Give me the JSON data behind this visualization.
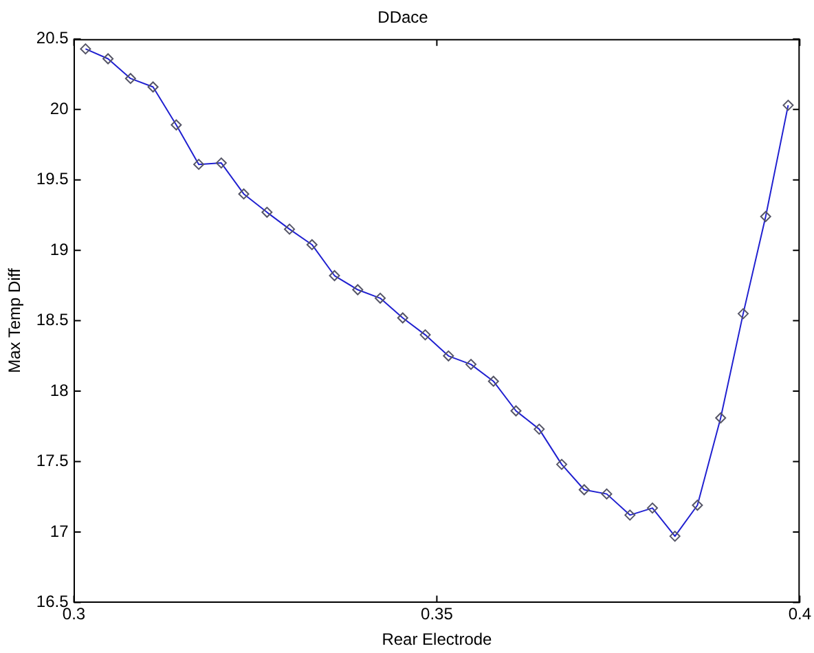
{
  "chart_data": {
    "type": "line",
    "title": "DDace",
    "xlabel": "Rear Electrode",
    "ylabel": "Max Temp Diff",
    "x": [
      0.3016,
      0.3047,
      0.3078,
      0.3109,
      0.3141,
      0.3172,
      0.3203,
      0.3234,
      0.3266,
      0.3297,
      0.3328,
      0.3359,
      0.3391,
      0.3422,
      0.3453,
      0.3484,
      0.3516,
      0.3547,
      0.3578,
      0.3609,
      0.3641,
      0.3672,
      0.3703,
      0.3734,
      0.3766,
      0.3797,
      0.3828,
      0.3859,
      0.3891,
      0.3922,
      0.3953,
      0.3984
    ],
    "series": [
      {
        "color": "#2020d0",
        "values": [
          20.43,
          20.36,
          20.22,
          20.16,
          19.89,
          19.61,
          19.62,
          19.4,
          19.27,
          19.15,
          19.04,
          18.82,
          18.72,
          18.66,
          18.52,
          18.4,
          18.25,
          18.19,
          18.07,
          17.86,
          17.73,
          17.48,
          17.3,
          17.27,
          17.12,
          17.17,
          16.97,
          17.19,
          17.81,
          18.55,
          19.24,
          20.03
        ]
      }
    ],
    "xlim": [
      0.3,
      0.4
    ],
    "xticks": [
      0.3,
      0.35,
      0.4
    ],
    "ylim": [
      16.5,
      20.5
    ],
    "yticks": [
      16.5,
      17,
      17.5,
      18,
      18.5,
      19,
      19.5,
      20,
      20.5
    ],
    "grid": false,
    "legend": false,
    "marker": "diamond",
    "line_style": "solid"
  }
}
